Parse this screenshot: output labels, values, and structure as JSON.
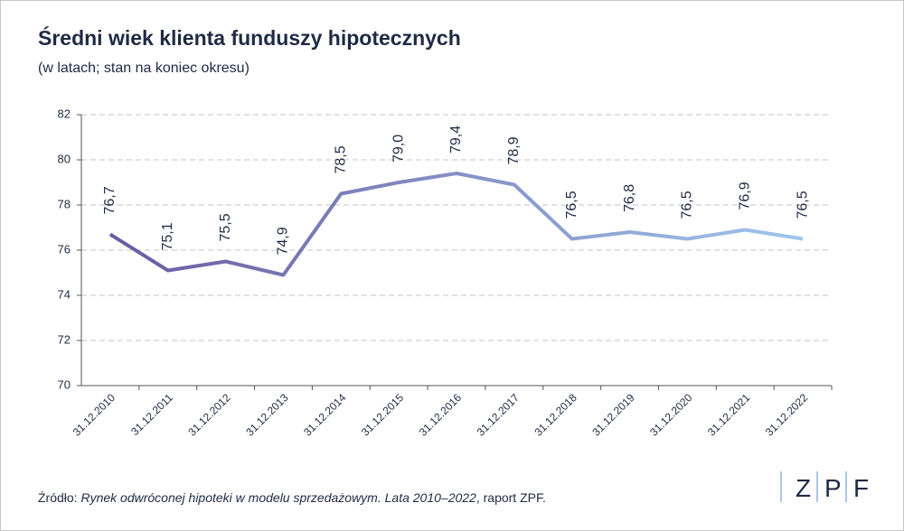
{
  "chart_data": {
    "type": "line",
    "title": "Średni wiek klienta funduszy hipotecznych",
    "subtitle": "(w latach; stan na koniec okresu)",
    "categories": [
      "31.12.2010",
      "31.12.2011",
      "31.12.2012",
      "31.12.2013",
      "31.12.2014",
      "31.12.2015",
      "31.12.2016",
      "31.12.2017",
      "31.12.2018",
      "31.12.2019",
      "31.12.2020",
      "31.12.2021",
      "31.12.2022"
    ],
    "values": [
      76.7,
      75.1,
      75.5,
      74.9,
      78.5,
      79.0,
      79.4,
      78.9,
      76.5,
      76.8,
      76.5,
      76.9,
      76.5
    ],
    "value_labels": [
      "76,7",
      "75,1",
      "75,5",
      "74,9",
      "78,5",
      "79,0",
      "79,4",
      "78,9",
      "76,5",
      "76,8",
      "76,5",
      "76,9",
      "76,5"
    ],
    "color_start": "#6a5a9f",
    "color_end": "#9fc6ec",
    "ylim": [
      70,
      82
    ],
    "yticks": [
      70,
      72,
      74,
      76,
      78,
      80,
      82
    ],
    "grid": true,
    "source": {
      "prefix": "Źródło: ",
      "title": "Rynek odwróconej hipoteki w modelu sprzedażowym. Lata 2010–2022",
      "suffix": ", raport ZPF."
    },
    "logo": [
      "Z",
      "P",
      "F"
    ]
  }
}
